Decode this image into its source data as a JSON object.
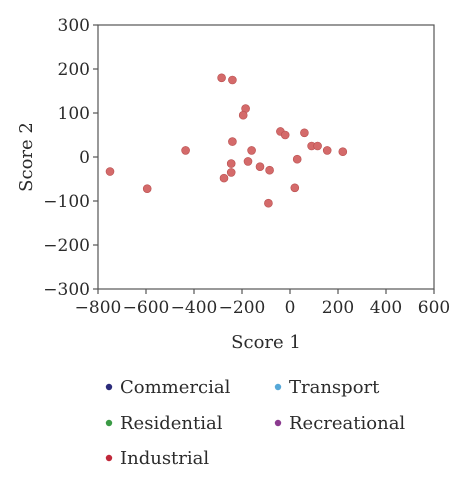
{
  "chart_data": {
    "type": "scatter",
    "title": "",
    "xlabel": "Score 1",
    "ylabel": "Score 2",
    "xlim": [
      -800,
      600
    ],
    "ylim": [
      -300,
      300
    ],
    "x_ticks": [
      -800,
      -600,
      -400,
      -200,
      0,
      200,
      400,
      600
    ],
    "y_ticks": [
      -300,
      -200,
      -100,
      0,
      100,
      200,
      300
    ],
    "x_tick_labels": [
      "−800",
      "−600",
      "−400",
      "−200",
      "0",
      "200",
      "400",
      "600"
    ],
    "y_tick_labels": [
      "−300",
      "−200",
      "−100",
      "0",
      "100",
      "200",
      "300"
    ],
    "grid": false,
    "legend_position": "bottom",
    "legend": [
      {
        "label": "Commercial",
        "color": "#2b2b7a"
      },
      {
        "label": "Transport",
        "color": "#56a8d8"
      },
      {
        "label": "Residential",
        "color": "#3a9a45"
      },
      {
        "label": "Recreational",
        "color": "#8b3a8f"
      },
      {
        "label": "Industrial",
        "color": "#c0283a"
      }
    ],
    "series": [
      {
        "name": "Industrial",
        "color": "#d46a6a",
        "points": [
          {
            "x": -750,
            "y": -33
          },
          {
            "x": -595,
            "y": -72
          },
          {
            "x": -435,
            "y": 15
          },
          {
            "x": -285,
            "y": 180
          },
          {
            "x": -240,
            "y": 175
          },
          {
            "x": -185,
            "y": 110
          },
          {
            "x": -195,
            "y": 95
          },
          {
            "x": -240,
            "y": 35
          },
          {
            "x": -245,
            "y": -15
          },
          {
            "x": -245,
            "y": -35
          },
          {
            "x": -275,
            "y": -48
          },
          {
            "x": -175,
            "y": -10
          },
          {
            "x": -160,
            "y": 15
          },
          {
            "x": -125,
            "y": -22
          },
          {
            "x": -85,
            "y": -30
          },
          {
            "x": -90,
            "y": -105
          },
          {
            "x": -40,
            "y": 58
          },
          {
            "x": -20,
            "y": 50
          },
          {
            "x": 30,
            "y": -5
          },
          {
            "x": 20,
            "y": -70
          },
          {
            "x": 60,
            "y": 55
          },
          {
            "x": 90,
            "y": 25
          },
          {
            "x": 115,
            "y": 25
          },
          {
            "x": 155,
            "y": 15
          },
          {
            "x": 220,
            "y": 12
          }
        ]
      }
    ]
  }
}
